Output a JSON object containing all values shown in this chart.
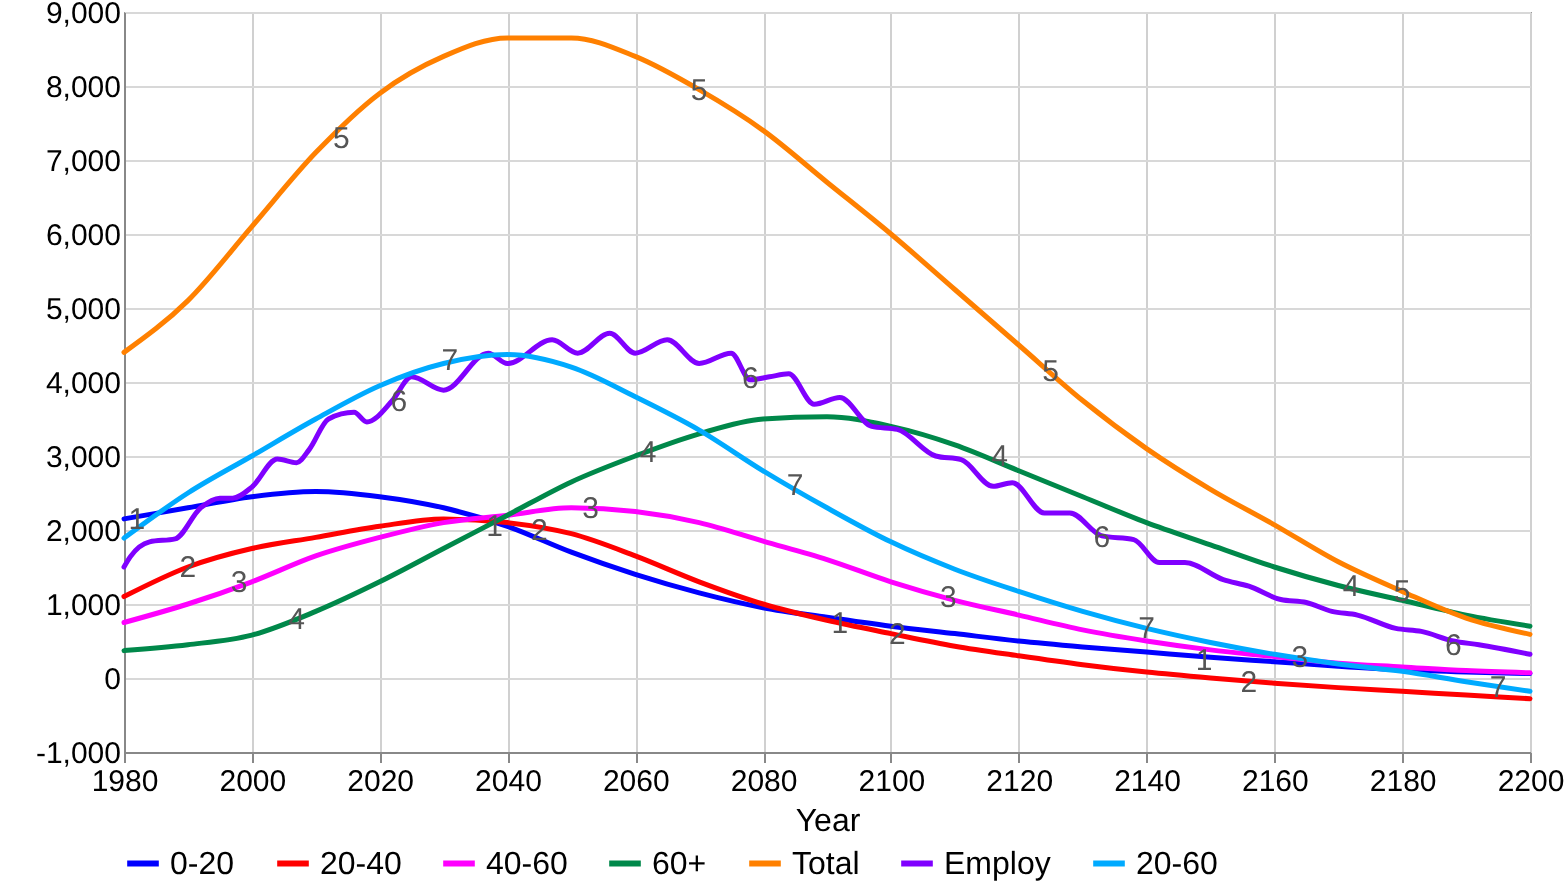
{
  "chart_data": {
    "type": "line",
    "xlabel": "Year",
    "x": [
      1980,
      1990,
      2000,
      2010,
      2020,
      2030,
      2040,
      2050,
      2060,
      2070,
      2080,
      2090,
      2100,
      2110,
      2120,
      2130,
      2140,
      2150,
      2160,
      2170,
      2180,
      2190,
      2200
    ],
    "series": [
      {
        "name": "0-20",
        "color": "#0000ff",
        "values": [
          2150,
          2300,
          2450,
          2520,
          2450,
          2300,
          2050,
          1700,
          1400,
          1150,
          950,
          820,
          700,
          600,
          500,
          420,
          350,
          280,
          220,
          160,
          110,
          80,
          60
        ]
      },
      {
        "name": "20-40",
        "color": "#ff0000",
        "values": [
          1100,
          1500,
          1750,
          1900,
          2050,
          2150,
          2100,
          1950,
          1650,
          1300,
          1000,
          780,
          600,
          430,
          300,
          180,
          80,
          0,
          -70,
          -130,
          -180,
          -230,
          -280
        ]
      },
      {
        "name": "40-60",
        "color": "#ff00ff",
        "values": [
          750,
          1000,
          1300,
          1650,
          1900,
          2100,
          2200,
          2300,
          2250,
          2100,
          1850,
          1600,
          1300,
          1050,
          850,
          650,
          500,
          380,
          290,
          200,
          150,
          100,
          70
        ]
      },
      {
        "name": "60+",
        "color": "#00884a",
        "values": [
          370,
          450,
          580,
          900,
          1300,
          1750,
          2200,
          2650,
          3000,
          3300,
          3500,
          3530,
          3400,
          3150,
          2800,
          2450,
          2100,
          1800,
          1500,
          1250,
          1050,
          850,
          700
        ]
      },
      {
        "name": "Total",
        "color": "#ff8000",
        "values": [
          4400,
          5100,
          6100,
          7100,
          7900,
          8400,
          8650,
          8650,
          8400,
          7950,
          7400,
          6700,
          6000,
          5250,
          4500,
          3750,
          3100,
          2550,
          2070,
          1570,
          1170,
          810,
          590
        ]
      },
      {
        "name": "Employ",
        "color": "#8000ff",
        "x": [
          1980,
          1981,
          1984,
          1988,
          1992,
          1995,
          1997,
          2000,
          2004,
          2007,
          2009,
          2012,
          2016,
          2018,
          2022,
          2025,
          2030,
          2037,
          2040,
          2047,
          2051,
          2056,
          2060,
          2065,
          2070,
          2075,
          2078,
          2081,
          2084,
          2088,
          2092,
          2097,
          2101,
          2107,
          2111,
          2116,
          2119,
          2124,
          2128,
          2133,
          2138,
          2142,
          2146,
          2152,
          2156,
          2161,
          2165,
          2169,
          2173,
          2179,
          2183,
          2188,
          2192,
          2200
        ],
        "values": [
          1500,
          1640,
          1840,
          1880,
          2300,
          2430,
          2430,
          2580,
          2960,
          2910,
          3090,
          3500,
          3590,
          3460,
          3750,
          4070,
          3890,
          4390,
          4250,
          4570,
          4390,
          4660,
          4390,
          4570,
          4250,
          4390,
          4030,
          4070,
          4110,
          3700,
          3790,
          3400,
          3360,
          3000,
          2950,
          2590,
          2640,
          2230,
          2230,
          1920,
          1870,
          1560,
          1560,
          1330,
          1240,
          1060,
          1020,
          900,
          850,
          670,
          630,
          500,
          450,
          320
        ]
      },
      {
        "name": "20-60",
        "color": "#00aaff",
        "values": [
          1890,
          2500,
          3000,
          3500,
          3950,
          4250,
          4370,
          4200,
          3800,
          3350,
          2800,
          2300,
          1840,
          1470,
          1170,
          900,
          670,
          480,
          320,
          190,
          90,
          -50,
          -180
        ]
      }
    ],
    "xlim": [
      1980,
      2200
    ],
    "xticks": [
      1980,
      2000,
      2020,
      2040,
      2060,
      2080,
      2100,
      2120,
      2140,
      2160,
      2180,
      2200
    ],
    "ylim": [
      -1000,
      9000
    ],
    "yticks": [
      {
        "value": -1000,
        "label": "-1,000"
      },
      {
        "value": 0,
        "label": "0"
      },
      {
        "value": 1000,
        "label": "1,000"
      },
      {
        "value": 2000,
        "label": "2,000"
      },
      {
        "value": 3000,
        "label": "3,000"
      },
      {
        "value": 4000,
        "label": "4,000"
      },
      {
        "value": 5000,
        "label": "5,000"
      },
      {
        "value": 6000,
        "label": "6,000"
      },
      {
        "value": 7000,
        "label": "7,000"
      },
      {
        "value": 8000,
        "label": "8,000"
      },
      {
        "value": 9000,
        "label": "9,000"
      }
    ],
    "grid": true,
    "legend": "bottom",
    "marker": "none",
    "line_style": "solid",
    "annotations": [
      {
        "text": "1",
        "x": 1982,
        "y": 2150
      },
      {
        "text": "1",
        "x": 2038,
        "y": 2050
      },
      {
        "text": "1",
        "x": 2092,
        "y": 750
      },
      {
        "text": "1",
        "x": 2149,
        "y": 250
      },
      {
        "text": "2",
        "x": 1990,
        "y": 1500
      },
      {
        "text": "2",
        "x": 2045,
        "y": 2000
      },
      {
        "text": "2",
        "x": 2101,
        "y": 600
      },
      {
        "text": "2",
        "x": 2156,
        "y": -50
      },
      {
        "text": "3",
        "x": 1998,
        "y": 1300
      },
      {
        "text": "3",
        "x": 2053,
        "y": 2300
      },
      {
        "text": "3",
        "x": 2109,
        "y": 1100
      },
      {
        "text": "3",
        "x": 2164,
        "y": 280
      },
      {
        "text": "4",
        "x": 2007,
        "y": 800
      },
      {
        "text": "4",
        "x": 2062,
        "y": 3050
      },
      {
        "text": "4",
        "x": 2117,
        "y": 3000
      },
      {
        "text": "4",
        "x": 2172,
        "y": 1250
      },
      {
        "text": "5",
        "x": 2014,
        "y": 7300
      },
      {
        "text": "5",
        "x": 2070,
        "y": 7950
      },
      {
        "text": "5",
        "x": 2125,
        "y": 4150
      },
      {
        "text": "5",
        "x": 2180,
        "y": 1170
      },
      {
        "text": "6",
        "x": 2023,
        "y": 3750
      },
      {
        "text": "6",
        "x": 2078,
        "y": 4050
      },
      {
        "text": "6",
        "x": 2133,
        "y": 1900
      },
      {
        "text": "6",
        "x": 2188,
        "y": 450
      },
      {
        "text": "7",
        "x": 2031,
        "y": 4300
      },
      {
        "text": "7",
        "x": 2085,
        "y": 2610
      },
      {
        "text": "7",
        "x": 2140,
        "y": 670
      },
      {
        "text": "7",
        "x": 2195,
        "y": -120
      }
    ]
  }
}
